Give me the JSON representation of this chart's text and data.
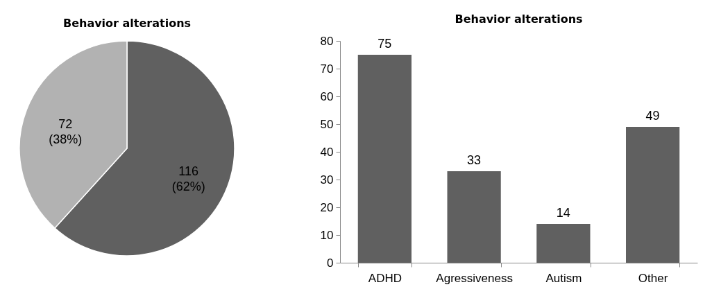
{
  "chart_data": [
    {
      "type": "pie",
      "title": "Behavior alterations",
      "categories": [
        null,
        null
      ],
      "values": [
        116,
        72
      ],
      "colors": [
        "#606060",
        "#b2b2b2"
      ],
      "value_labels": [
        "116 (62%)",
        "72 (38%)"
      ]
    },
    {
      "type": "bar",
      "title": "Behavior alterations",
      "categories": [
        "ADHD",
        "Agressiveness",
        "Autism",
        "Other"
      ],
      "values": [
        75,
        33,
        14,
        49
      ],
      "color": "#606060",
      "ylim": [
        0,
        80
      ],
      "yticks": [
        0,
        10,
        20,
        30,
        40,
        50,
        60,
        70,
        80
      ],
      "data_labels": true
    }
  ]
}
